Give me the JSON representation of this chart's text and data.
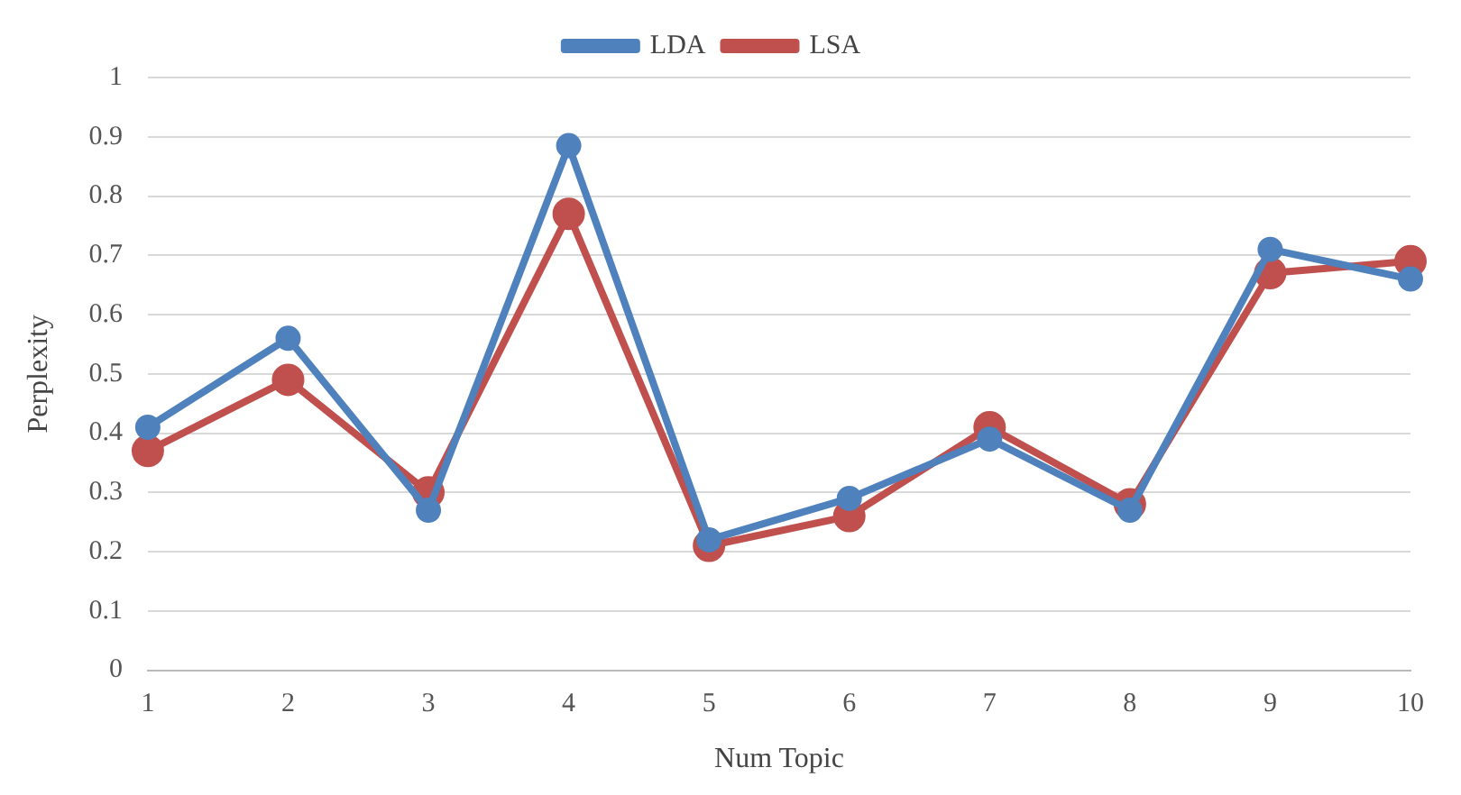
{
  "chart_data": {
    "type": "line",
    "xlabel": "Num Topic",
    "ylabel": "Perplexity",
    "categories": [
      "1",
      "2",
      "3",
      "4",
      "5",
      "6",
      "7",
      "8",
      "9",
      "10"
    ],
    "series": [
      {
        "name": "LDA",
        "color": "#4f81bd",
        "values": [
          0.41,
          0.56,
          0.27,
          0.885,
          0.22,
          0.29,
          0.39,
          0.27,
          0.71,
          0.66
        ]
      },
      {
        "name": "LSA",
        "color": "#c0504d",
        "values": [
          0.37,
          0.49,
          0.3,
          0.77,
          0.21,
          0.26,
          0.41,
          0.28,
          0.67,
          0.69
        ]
      }
    ],
    "ylim": [
      0,
      1
    ],
    "yticks": [
      0,
      0.1,
      0.2,
      0.3,
      0.4,
      0.5,
      0.6,
      0.7,
      0.8,
      0.9,
      1
    ],
    "grid": "y",
    "legend": "top",
    "marker": "circle",
    "line_style": "solid"
  }
}
